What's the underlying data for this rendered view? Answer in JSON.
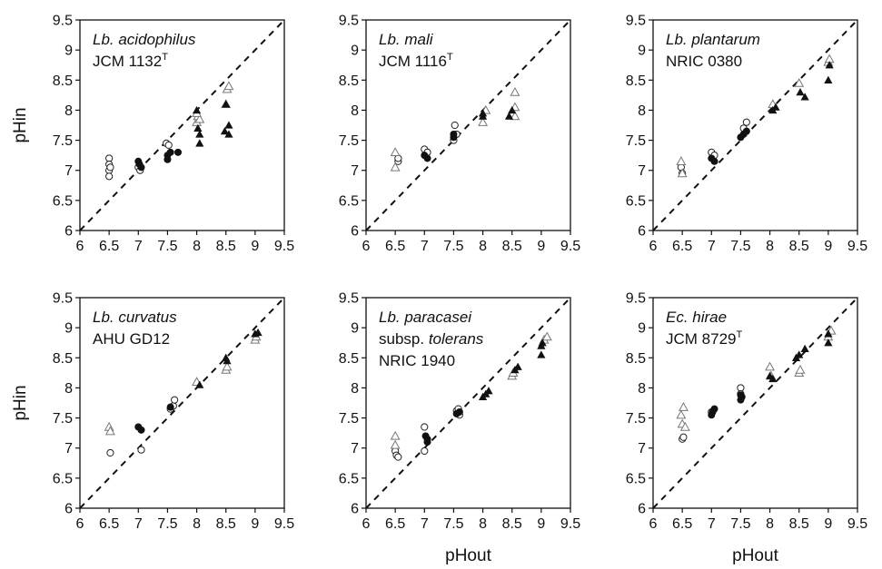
{
  "figure": {
    "ylabel": "pHin",
    "xlabel": "pHout"
  },
  "chart_data": [
    {
      "type": "scatter",
      "panel_label": {
        "line1_italic": "Lb. acidophilus",
        "line2": "JCM 1132",
        "line2_sup": "T"
      },
      "xlim": [
        6,
        9.5
      ],
      "ylim": [
        6,
        9.5
      ],
      "x_ticks": [
        "6",
        "6.5",
        "7",
        "7.5",
        "8",
        "8.5",
        "9",
        "9.5"
      ],
      "y_ticks": [
        "6",
        "6.5",
        "7",
        "7.5",
        "8",
        "8.5",
        "9",
        "9.5"
      ],
      "reference_line": "y = x (dashed)",
      "series": [
        {
          "marker": "open-circle",
          "points": [
            [
              6.5,
              7.2
            ],
            [
              6.5,
              7.1
            ],
            [
              6.5,
              7.0
            ],
            [
              6.5,
              6.9
            ],
            [
              6.52,
              7.05
            ],
            [
              7.0,
              7.05
            ],
            [
              7.03,
              7.0
            ],
            [
              7.48,
              7.45
            ],
            [
              7.52,
              7.42
            ]
          ]
        },
        {
          "marker": "filled-circle",
          "points": [
            [
              7.0,
              7.15
            ],
            [
              7.02,
              7.1
            ],
            [
              7.05,
              7.05
            ],
            [
              7.5,
              7.25
            ],
            [
              7.5,
              7.18
            ],
            [
              7.55,
              7.3
            ],
            [
              7.68,
              7.3
            ]
          ]
        },
        {
          "marker": "open-triangle",
          "points": [
            [
              8.0,
              7.8
            ],
            [
              8.02,
              7.9
            ],
            [
              8.05,
              7.85
            ],
            [
              8.0,
              7.95
            ],
            [
              8.5,
              8.1
            ],
            [
              8.52,
              8.35
            ],
            [
              8.55,
              8.4
            ]
          ]
        },
        {
          "marker": "filled-triangle",
          "points": [
            [
              8.0,
              8.0
            ],
            [
              8.02,
              7.7
            ],
            [
              8.05,
              7.45
            ],
            [
              8.05,
              7.6
            ],
            [
              8.48,
              7.65
            ],
            [
              8.5,
              8.1
            ],
            [
              8.55,
              7.6
            ],
            [
              8.55,
              7.75
            ]
          ]
        }
      ]
    },
    {
      "type": "scatter",
      "panel_label": {
        "line1_italic": "Lb. mali",
        "line2": "JCM 1116",
        "line2_sup": "T"
      },
      "xlim": [
        6,
        9.5
      ],
      "ylim": [
        6,
        9.5
      ],
      "x_ticks": [
        "6",
        "6.5",
        "7",
        "7.5",
        "8",
        "8.5",
        "9",
        "9.5"
      ],
      "y_ticks": [
        "6",
        "6.5",
        "7",
        "7.5",
        "8",
        "8.5",
        "9",
        "9.5"
      ],
      "reference_line": "y = x (dashed)",
      "series": [
        {
          "marker": "open-circle",
          "points": [
            [
              6.55,
              7.15
            ],
            [
              6.55,
              7.2
            ],
            [
              7.0,
              7.35
            ],
            [
              7.05,
              7.3
            ],
            [
              7.52,
              7.75
            ],
            [
              7.5,
              7.5
            ],
            [
              7.55,
              7.6
            ]
          ]
        },
        {
          "marker": "filled-circle",
          "points": [
            [
              7.0,
              7.25
            ],
            [
              7.05,
              7.2
            ],
            [
              7.5,
              7.6
            ],
            [
              7.5,
              7.55
            ]
          ]
        },
        {
          "marker": "open-triangle",
          "points": [
            [
              6.5,
              7.3
            ],
            [
              6.5,
              7.05
            ],
            [
              8.0,
              7.8
            ],
            [
              8.05,
              8.0
            ],
            [
              8.55,
              8.3
            ],
            [
              8.55,
              8.05
            ],
            [
              8.55,
              7.9
            ]
          ]
        },
        {
          "marker": "filled-triangle",
          "points": [
            [
              8.0,
              7.9
            ],
            [
              8.0,
              7.95
            ],
            [
              8.45,
              7.9
            ],
            [
              8.5,
              8.0
            ]
          ]
        }
      ]
    },
    {
      "type": "scatter",
      "panel_label": {
        "line1_italic": "Lb. plantarum",
        "line2": "NRIC 0380",
        "line2_sup": ""
      },
      "xlim": [
        6,
        9.5
      ],
      "ylim": [
        6,
        9.5
      ],
      "x_ticks": [
        "6",
        "6.5",
        "7",
        "7.5",
        "8",
        "8.5",
        "9",
        "9.5"
      ],
      "y_ticks": [
        "6",
        "6.5",
        "7",
        "7.5",
        "8",
        "8.5",
        "9",
        "9.5"
      ],
      "reference_line": "y = x (dashed)",
      "series": [
        {
          "marker": "open-circle",
          "points": [
            [
              6.48,
              7.05
            ],
            [
              6.5,
              6.95
            ],
            [
              7.0,
              7.3
            ],
            [
              7.05,
              7.25
            ],
            [
              7.55,
              7.7
            ],
            [
              7.6,
              7.8
            ]
          ]
        },
        {
          "marker": "filled-circle",
          "points": [
            [
              7.0,
              7.2
            ],
            [
              7.05,
              7.15
            ],
            [
              7.5,
              7.55
            ],
            [
              7.55,
              7.6
            ],
            [
              7.6,
              7.65
            ]
          ]
        },
        {
          "marker": "open-triangle",
          "points": [
            [
              6.48,
              7.15
            ],
            [
              6.5,
              6.95
            ],
            [
              8.05,
              8.1
            ],
            [
              8.5,
              8.45
            ],
            [
              9.0,
              8.8
            ],
            [
              9.02,
              8.85
            ]
          ]
        },
        {
          "marker": "filled-triangle",
          "points": [
            [
              8.05,
              8.0
            ],
            [
              8.1,
              8.05
            ],
            [
              8.52,
              8.3
            ],
            [
              8.6,
              8.22
            ],
            [
              9.0,
              8.5
            ],
            [
              9.02,
              8.75
            ]
          ]
        }
      ]
    },
    {
      "type": "scatter",
      "panel_label": {
        "line1_italic": "Lb. curvatus",
        "line2": "AHU GD12",
        "line2_sup": ""
      },
      "xlim": [
        6,
        9.5
      ],
      "ylim": [
        6,
        9.5
      ],
      "x_ticks": [
        "6",
        "6.5",
        "7",
        "7.5",
        "8",
        "8.5",
        "9",
        "9.5"
      ],
      "y_ticks": [
        "6",
        "6.5",
        "7",
        "7.5",
        "8",
        "8.5",
        "9",
        "9.5"
      ],
      "reference_line": "y = x (dashed)",
      "series": [
        {
          "marker": "open-circle",
          "points": [
            [
              6.52,
              6.92
            ],
            [
              7.05,
              6.97
            ],
            [
              7.55,
              7.65
            ],
            [
              7.6,
              7.7
            ],
            [
              7.62,
              7.8
            ]
          ]
        },
        {
          "marker": "filled-circle",
          "points": [
            [
              7.0,
              7.35
            ],
            [
              7.05,
              7.3
            ],
            [
              7.55,
              7.68
            ]
          ]
        },
        {
          "marker": "open-triangle",
          "points": [
            [
              6.5,
              7.35
            ],
            [
              6.52,
              7.28
            ],
            [
              8.0,
              8.1
            ],
            [
              8.5,
              8.3
            ],
            [
              8.52,
              8.35
            ],
            [
              9.0,
              8.8
            ],
            [
              9.02,
              8.85
            ]
          ]
        },
        {
          "marker": "filled-triangle",
          "points": [
            [
              8.05,
              8.05
            ],
            [
              8.5,
              8.5
            ],
            [
              8.52,
              8.45
            ],
            [
              9.0,
              8.9
            ],
            [
              9.05,
              8.92
            ]
          ]
        }
      ]
    },
    {
      "type": "scatter",
      "panel_label": {
        "line1_italic": "Lb. paracasei",
        "line2_prefix": "subsp. ",
        "line2_italic": "tolerans",
        "line3": "NRIC 1940"
      },
      "xlim": [
        6,
        9.5
      ],
      "ylim": [
        6,
        9.5
      ],
      "x_ticks": [
        "6",
        "6.5",
        "7",
        "7.5",
        "8",
        "8.5",
        "9",
        "9.5"
      ],
      "y_ticks": [
        "6",
        "6.5",
        "7",
        "7.5",
        "8",
        "8.5",
        "9",
        "9.5"
      ],
      "reference_line": "y = x (dashed)",
      "series": [
        {
          "marker": "open-circle",
          "points": [
            [
              6.5,
              6.95
            ],
            [
              6.52,
              6.88
            ],
            [
              6.55,
              6.85
            ],
            [
              7.0,
              7.35
            ],
            [
              7.0,
              6.95
            ],
            [
              7.55,
              7.62
            ],
            [
              7.58,
              7.65
            ],
            [
              7.6,
              7.55
            ]
          ]
        },
        {
          "marker": "filled-circle",
          "points": [
            [
              7.02,
              7.2
            ],
            [
              7.05,
              7.15
            ],
            [
              7.05,
              7.1
            ],
            [
              7.6,
              7.6
            ],
            [
              7.55,
              7.57
            ]
          ]
        },
        {
          "marker": "open-triangle",
          "points": [
            [
              6.5,
              7.2
            ],
            [
              6.5,
              7.05
            ],
            [
              8.5,
              8.2
            ],
            [
              8.52,
              8.25
            ],
            [
              9.05,
              8.8
            ],
            [
              9.1,
              8.85
            ]
          ]
        },
        {
          "marker": "filled-triangle",
          "points": [
            [
              8.0,
              7.85
            ],
            [
              8.05,
              7.9
            ],
            [
              8.1,
              7.95
            ],
            [
              8.55,
              8.3
            ],
            [
              8.6,
              8.35
            ],
            [
              9.0,
              8.55
            ],
            [
              9.0,
              8.7
            ],
            [
              9.02,
              8.75
            ]
          ]
        }
      ]
    },
    {
      "type": "scatter",
      "panel_label": {
        "line1_italic": "Ec. hirae",
        "line2": "JCM 8729",
        "line2_sup": "T"
      },
      "xlim": [
        6,
        9.5
      ],
      "ylim": [
        6,
        9.5
      ],
      "x_ticks": [
        "6",
        "6.5",
        "7",
        "7.5",
        "8",
        "8.5",
        "9",
        "9.5"
      ],
      "y_ticks": [
        "6",
        "6.5",
        "7",
        "7.5",
        "8",
        "8.5",
        "9",
        "9.5"
      ],
      "reference_line": "y = x (dashed)",
      "series": [
        {
          "marker": "open-circle",
          "points": [
            [
              6.5,
              7.15
            ],
            [
              6.52,
              7.18
            ],
            [
              7.0,
              7.6
            ],
            [
              7.5,
              8.0
            ],
            [
              7.5,
              7.9
            ]
          ]
        },
        {
          "marker": "filled-circle",
          "points": [
            [
              7.0,
              7.55
            ],
            [
              7.02,
              7.6
            ],
            [
              7.05,
              7.65
            ],
            [
              7.5,
              7.8
            ],
            [
              7.52,
              7.85
            ],
            [
              7.5,
              7.88
            ]
          ]
        },
        {
          "marker": "open-triangle",
          "points": [
            [
              6.52,
              7.68
            ],
            [
              6.48,
              7.55
            ],
            [
              6.5,
              7.4
            ],
            [
              6.55,
              7.35
            ],
            [
              8.0,
              8.35
            ],
            [
              8.02,
              8.2
            ],
            [
              8.5,
              8.25
            ],
            [
              8.52,
              8.3
            ],
            [
              9.05,
              8.95
            ],
            [
              9.0,
              8.85
            ]
          ]
        },
        {
          "marker": "filled-triangle",
          "points": [
            [
              8.0,
              8.2
            ],
            [
              8.05,
              8.15
            ],
            [
              8.45,
              8.5
            ],
            [
              8.5,
              8.55
            ],
            [
              8.6,
              8.65
            ],
            [
              9.0,
              8.9
            ],
            [
              9.0,
              8.75
            ]
          ]
        }
      ]
    }
  ]
}
